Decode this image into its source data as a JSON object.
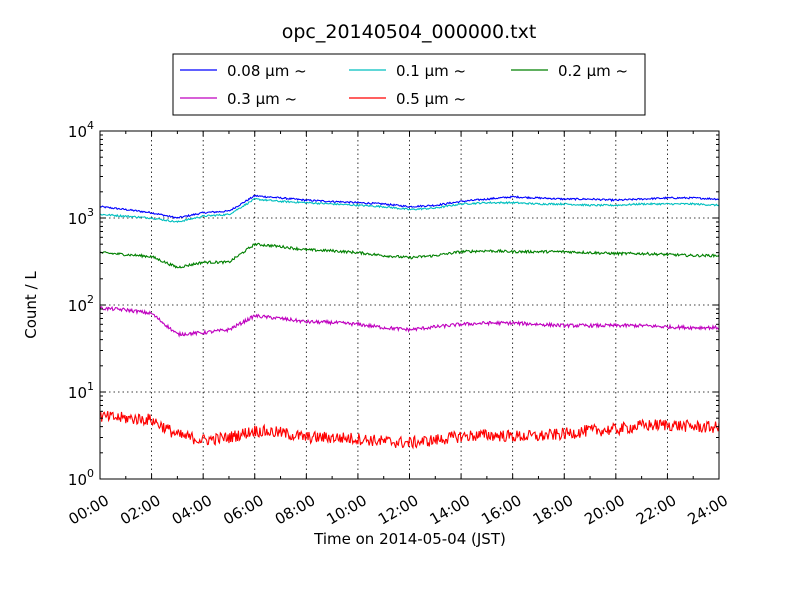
{
  "chart_data": {
    "type": "line",
    "title": "opc_20140504_000000.txt",
    "xlabel": "Time on 2014-05-04 (JST)",
    "ylabel": "Count / L",
    "y_scale": "log",
    "ylim": [
      1,
      10000
    ],
    "y_ticks": [
      {
        "base": "10",
        "exp": "0"
      },
      {
        "base": "10",
        "exp": "1"
      },
      {
        "base": "10",
        "exp": "2"
      },
      {
        "base": "10",
        "exp": "3"
      },
      {
        "base": "10",
        "exp": "4"
      }
    ],
    "xlim_hours": [
      0,
      24
    ],
    "x_tick_labels": [
      "00:00",
      "02:00",
      "04:00",
      "06:00",
      "08:00",
      "10:00",
      "12:00",
      "14:00",
      "16:00",
      "18:00",
      "20:00",
      "22:00",
      "24:00"
    ],
    "grid": true,
    "legend_placement": "top-center",
    "x": [
      0,
      1,
      2,
      3,
      4,
      5,
      6,
      7,
      8,
      9,
      10,
      11,
      12,
      13,
      14,
      15,
      16,
      17,
      18,
      19,
      20,
      21,
      22,
      23,
      24
    ],
    "series": [
      {
        "name": "0.08 μm ~",
        "color": "#0000ff",
        "noise": 0.01,
        "values": [
          1350,
          1250,
          1150,
          1000,
          1150,
          1200,
          1800,
          1700,
          1600,
          1550,
          1500,
          1450,
          1350,
          1400,
          1550,
          1650,
          1750,
          1700,
          1650,
          1650,
          1600,
          1650,
          1700,
          1700,
          1650
        ]
      },
      {
        "name": "0.1 μm ~",
        "color": "#00bfbf",
        "noise": 0.01,
        "values": [
          1100,
          1050,
          1000,
          900,
          1050,
          1100,
          1650,
          1550,
          1500,
          1450,
          1400,
          1350,
          1250,
          1300,
          1450,
          1500,
          1500,
          1450,
          1450,
          1400,
          1400,
          1450,
          1450,
          1450,
          1400
        ]
      },
      {
        "name": "0.2 μm ~",
        "color": "#008000",
        "noise": 0.015,
        "values": [
          400,
          380,
          360,
          270,
          310,
          310,
          500,
          470,
          430,
          420,
          400,
          370,
          350,
          370,
          410,
          420,
          410,
          410,
          410,
          400,
          390,
          390,
          380,
          370,
          370
        ]
      },
      {
        "name": "0.3 μm ~",
        "color": "#bf00bf",
        "noise": 0.02,
        "values": [
          92,
          88,
          80,
          46,
          48,
          52,
          75,
          70,
          64,
          63,
          60,
          55,
          52,
          56,
          60,
          62,
          62,
          60,
          58,
          58,
          58,
          58,
          56,
          55,
          55
        ]
      },
      {
        "name": "0.5 μm ~",
        "color": "#ff0000",
        "noise": 0.07,
        "values": [
          5.2,
          5.0,
          4.8,
          3.2,
          2.8,
          3.0,
          3.6,
          3.4,
          3.0,
          3.0,
          2.9,
          2.7,
          2.6,
          2.8,
          3.1,
          3.2,
          3.1,
          3.1,
          3.3,
          3.6,
          3.7,
          4.1,
          4.2,
          4.0,
          3.9
        ]
      }
    ]
  }
}
